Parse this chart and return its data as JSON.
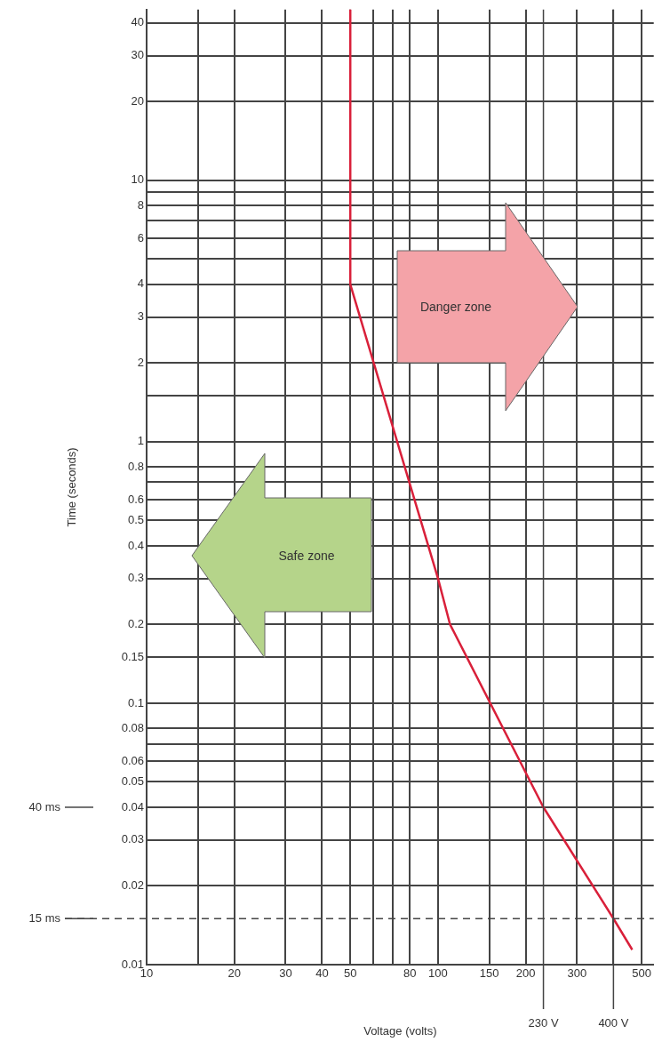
{
  "chart_data": {
    "type": "line",
    "xlabel": "Voltage (volts)",
    "ylabel": "Time (seconds)",
    "log": "xy",
    "grid": true,
    "marker": "none",
    "line_style": "solid",
    "xlim": [
      10,
      550
    ],
    "ylim": [
      0.01,
      45
    ],
    "xticks": [
      10,
      {
        "value": 15,
        "label": null
      },
      20,
      30,
      40,
      50,
      {
        "value": 60,
        "label": null
      },
      {
        "value": 70,
        "label": null
      },
      80,
      100,
      150,
      200,
      300,
      {
        "value": 400,
        "label": null
      },
      500
    ],
    "yticks": [
      0.01,
      0.02,
      0.03,
      0.04,
      0.05,
      0.06,
      {
        "value": 0.07,
        "label": null
      },
      0.08,
      0.1,
      0.15,
      0.2,
      0.3,
      0.4,
      0.5,
      0.6,
      {
        "value": 0.7,
        "label": null
      },
      0.8,
      1,
      {
        "value": 1.5,
        "label": null
      },
      2,
      3,
      4,
      {
        "value": 5,
        "label": null
      },
      6,
      {
        "value": 7,
        "label": null
      },
      8,
      {
        "value": 9,
        "label": null
      },
      10,
      20,
      30,
      40
    ],
    "x": [
      50,
      50,
      100,
      110,
      230,
      400,
      464
    ],
    "series": [
      {
        "color": "#d9203a",
        "values": [
          45,
          4,
          0.3,
          0.2,
          0.04,
          0.015,
          0.0114
        ]
      }
    ],
    "ref_lines": [
      {
        "axis": "y",
        "value": 0.04,
        "label": "40 ms",
        "line_style": "solid"
      },
      {
        "axis": "y",
        "value": 0.015,
        "label": "15 ms",
        "line_style": "dashed"
      },
      {
        "axis": "x",
        "value": 230,
        "label": "230 V"
      },
      {
        "axis": "x",
        "value": 400,
        "label": "400 V"
      }
    ],
    "annotations": [
      "Danger zone",
      "Safe zone"
    ]
  }
}
